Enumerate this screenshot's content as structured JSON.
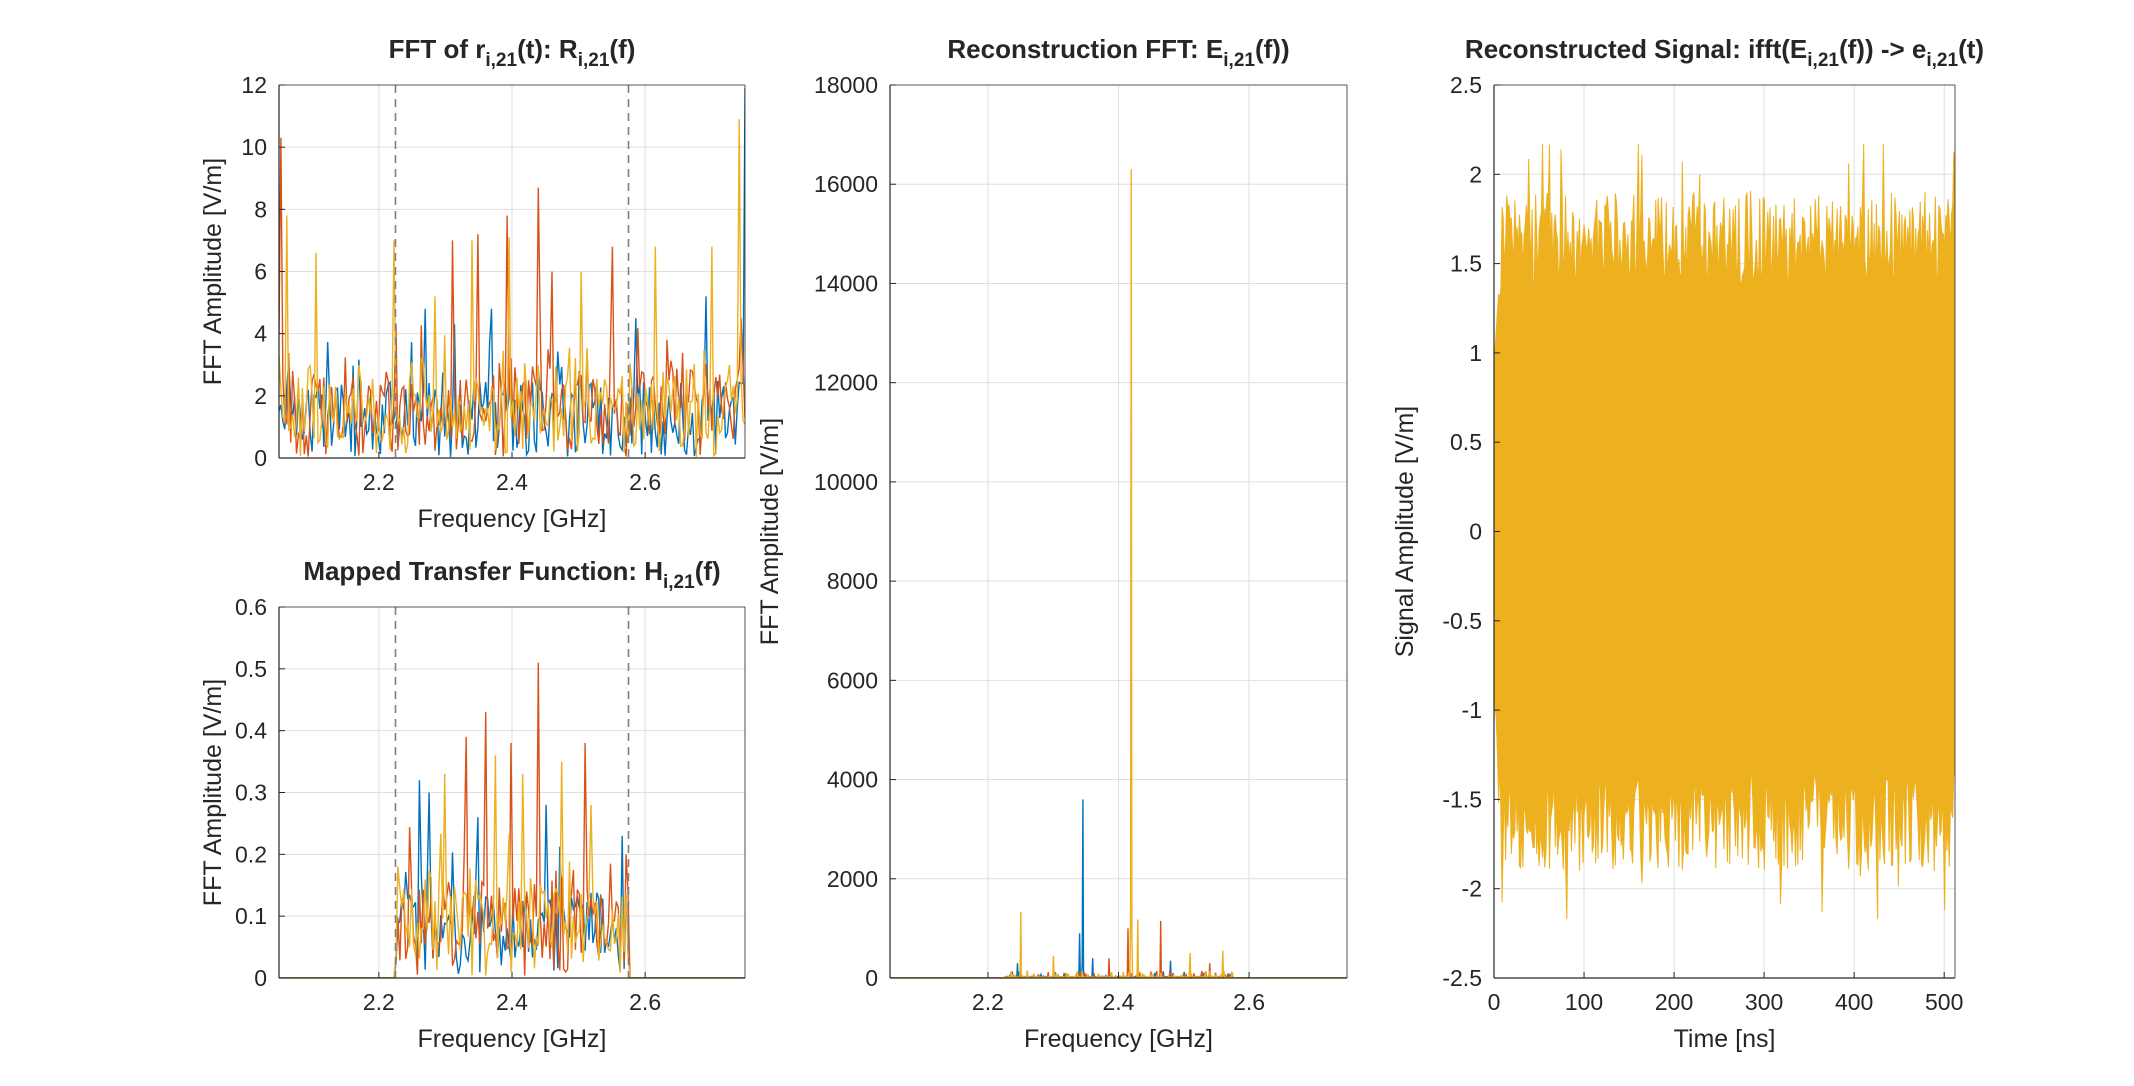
{
  "figure": {
    "colors": {
      "series1": "#0072BD",
      "series2": "#D95319",
      "series3": "#EDB120",
      "grid": "#DFDFDF",
      "axis": "#262626",
      "band": "#808080"
    }
  },
  "chart_data": [
    {
      "id": "fft_r",
      "type": "line",
      "title_parts": [
        {
          "t": "FFT of r",
          "sub": false
        },
        {
          "t": "i,21",
          "sub": true
        },
        {
          "t": "(t): R",
          "sub": false
        },
        {
          "t": "i,21",
          "sub": true
        },
        {
          "t": "(f)",
          "sub": false
        }
      ],
      "xlabel": "Frequency [GHz]",
      "ylabel": "FFT Amplitude [V/m]",
      "xlim": [
        2.05,
        2.75
      ],
      "ylim": [
        0,
        12
      ],
      "xticks": [
        2.2,
        2.4,
        2.6
      ],
      "xtick_labels": [
        "2.2",
        "2.4",
        "2.6"
      ],
      "yticks": [
        0,
        2,
        4,
        6,
        8,
        10,
        12
      ],
      "ytick_labels": [
        "0",
        "2",
        "4",
        "6",
        "8",
        "10",
        "12"
      ],
      "grid": true,
      "band_lines_x": [
        2.225,
        2.575
      ],
      "series_colors": [
        "#0072BD",
        "#D95319",
        "#EDB120"
      ],
      "series_values": {
        "n": 240,
        "x0": 2.05,
        "x1": 2.75,
        "floor": [
          1.4,
          1.6,
          1.5
        ],
        "spread": [
          1.8,
          2.0,
          1.9
        ],
        "spikes": [
          [
            [
              2.05,
              1.5
            ],
            [
              2.27,
              4.8
            ],
            [
              2.315,
              4.3
            ],
            [
              2.37,
              4.8
            ],
            [
              2.585,
              4.5
            ],
            [
              2.69,
              5.2
            ],
            [
              2.75,
              11.9
            ]
          ],
          [
            [
              2.052,
              10.3
            ],
            [
              2.226,
              4.3
            ],
            [
              2.31,
              7.0
            ],
            [
              2.35,
              7.2
            ],
            [
              2.392,
              7.8
            ],
            [
              2.44,
              8.7
            ],
            [
              2.46,
              6.0
            ],
            [
              2.55,
              6.8
            ],
            [
              2.745,
              4.5
            ]
          ],
          [
            [
              2.062,
              7.8
            ],
            [
              2.105,
              6.6
            ],
            [
              2.222,
              7.0
            ],
            [
              2.285,
              5.2
            ],
            [
              2.34,
              7.0
            ],
            [
              2.395,
              7.1
            ],
            [
              2.505,
              6.0
            ],
            [
              2.615,
              6.8
            ],
            [
              2.7,
              6.8
            ],
            [
              2.742,
              10.9
            ]
          ]
        ]
      }
    },
    {
      "id": "transfer_h",
      "type": "line",
      "title_parts": [
        {
          "t": "Mapped Transfer Function: H",
          "sub": false
        },
        {
          "t": "i,21",
          "sub": true
        },
        {
          "t": "(f)",
          "sub": false
        }
      ],
      "xlabel": "Frequency [GHz]",
      "ylabel": "FFT Amplitude [V/m]",
      "xlim": [
        2.05,
        2.75
      ],
      "ylim": [
        0,
        0.6
      ],
      "xticks": [
        2.2,
        2.4,
        2.6
      ],
      "xtick_labels": [
        "2.2",
        "2.4",
        "2.6"
      ],
      "yticks": [
        0,
        0.1,
        0.2,
        0.3,
        0.4,
        0.5,
        0.6
      ],
      "ytick_labels": [
        "0",
        "0.1",
        "0.2",
        "0.3",
        "0.4",
        "0.5",
        "0.6"
      ],
      "grid": true,
      "band_lines_x": [
        2.225,
        2.575
      ],
      "series_colors": [
        "#0072BD",
        "#D95319",
        "#EDB120"
      ],
      "series_values": {
        "n": 240,
        "x0": 2.05,
        "x1": 2.75,
        "band": [
          2.225,
          2.575
        ],
        "floor": [
          0.08,
          0.09,
          0.085
        ],
        "spread": [
          0.1,
          0.11,
          0.1
        ],
        "spikes": [
          [
            [
              2.26,
              0.32
            ],
            [
              2.275,
              0.3
            ],
            [
              2.35,
              0.26
            ],
            [
              2.45,
              0.28
            ],
            [
              2.565,
              0.23
            ]
          ],
          [
            [
              2.33,
              0.39
            ],
            [
              2.36,
              0.43
            ],
            [
              2.4,
              0.38
            ],
            [
              2.44,
              0.51
            ],
            [
              2.51,
              0.38
            ],
            [
              2.57,
              0.2
            ]
          ],
          [
            [
              2.23,
              0.18
            ],
            [
              2.3,
              0.33
            ],
            [
              2.375,
              0.36
            ],
            [
              2.415,
              0.33
            ],
            [
              2.475,
              0.35
            ],
            [
              2.52,
              0.28
            ]
          ]
        ]
      }
    },
    {
      "id": "recon_fft",
      "type": "line",
      "title_parts": [
        {
          "t": "Reconstruction FFT: E",
          "sub": false
        },
        {
          "t": "i,21",
          "sub": true
        },
        {
          "t": "(f))",
          "sub": false
        }
      ],
      "xlabel": "Frequency [GHz]",
      "ylabel": "FFT Amplitude [V/m]",
      "xlim": [
        2.05,
        2.75
      ],
      "ylim": [
        0,
        18000
      ],
      "xticks": [
        2.2,
        2.4,
        2.6
      ],
      "xtick_labels": [
        "2.2",
        "2.4",
        "2.6"
      ],
      "yticks": [
        0,
        2000,
        4000,
        6000,
        8000,
        10000,
        12000,
        14000,
        16000,
        18000
      ],
      "ytick_labels": [
        "0",
        "2000",
        "4000",
        "6000",
        "8000",
        "10000",
        "12000",
        "14000",
        "16000",
        "18000"
      ],
      "grid": true,
      "series_colors": [
        "#0072BD",
        "#D95319",
        "#EDB120"
      ],
      "series_values": {
        "n": 700,
        "x0": 2.05,
        "x1": 2.75,
        "band": [
          2.225,
          2.575
        ],
        "floor": [
          30,
          30,
          30
        ],
        "spread": [
          120,
          120,
          130
        ],
        "sharp": true,
        "spikes": [
          [
            [
              2.345,
              3600
            ],
            [
              2.34,
              900
            ],
            [
              2.36,
              400
            ],
            [
              2.245,
              300
            ],
            [
              2.48,
              350
            ]
          ],
          [
            [
              2.415,
              1000
            ],
            [
              2.465,
              1150
            ],
            [
              2.385,
              400
            ],
            [
              2.54,
              300
            ]
          ],
          [
            [
              2.42,
              16300
            ],
            [
              2.25,
              1330
            ],
            [
              2.3,
              450
            ],
            [
              2.43,
              1180
            ],
            [
              2.51,
              500
            ],
            [
              2.56,
              550
            ]
          ]
        ]
      }
    },
    {
      "id": "recon_signal",
      "type": "area",
      "title_parts": [
        {
          "t": "Reconstructed Signal: ifft(E",
          "sub": false
        },
        {
          "t": "i,21",
          "sub": true
        },
        {
          "t": "(f)) -> e",
          "sub": false
        },
        {
          "t": "i,21",
          "sub": true
        },
        {
          "t": "(t)",
          "sub": false
        }
      ],
      "xlabel": "Time [ns]",
      "ylabel": "Signal Amplitude [V/m]",
      "xlim": [
        0,
        512
      ],
      "ylim": [
        -2.5,
        2.5
      ],
      "xticks": [
        0,
        100,
        200,
        300,
        400,
        500
      ],
      "xtick_labels": [
        "0",
        "100",
        "200",
        "300",
        "400",
        "500"
      ],
      "yticks": [
        -2.5,
        -2,
        -1.5,
        -1,
        -0.5,
        0,
        0.5,
        1,
        1.5,
        2,
        2.5
      ],
      "ytick_labels": [
        "-2.5",
        "-2",
        "-1.5",
        "-1",
        "-0.5",
        "0",
        "0.5",
        "1",
        "1.5",
        "2",
        "2.5"
      ],
      "grid": true,
      "series_colors": [
        "#EDB120"
      ],
      "envelope": {
        "n": 400,
        "x0": 0,
        "x1": 512,
        "peak_max": 2.17,
        "peak_min": -2.17,
        "typical": 1.6
      }
    }
  ]
}
